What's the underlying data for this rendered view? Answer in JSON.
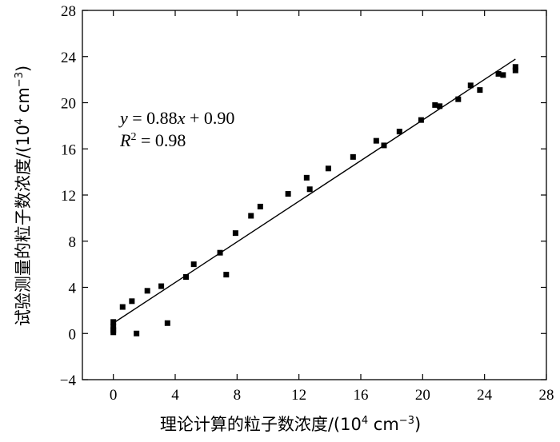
{
  "chart_data": {
    "type": "scatter",
    "xlim": [
      -2,
      28
    ],
    "ylim": [
      -4,
      28
    ],
    "x_ticks": [
      0,
      4,
      8,
      12,
      16,
      20,
      24,
      28
    ],
    "y_ticks": [
      -4,
      0,
      4,
      8,
      12,
      16,
      20,
      24,
      28
    ],
    "xlabel": {
      "main": "理论计算的粒子数浓度/(10",
      "sup1": "4",
      "mid": " cm",
      "sup2": "−3",
      "end": ")"
    },
    "ylabel": {
      "main": "试验测量的粒子数浓度/(10",
      "sup1": "4",
      "mid": " cm",
      "sup2": "−3",
      "end": ")"
    },
    "annotation": {
      "line1": {
        "var": "y",
        "rest1": " = 0.88",
        "var2": "x",
        "rest2": " + 0.90"
      },
      "line2": {
        "var": "R",
        "sup": "2",
        "rest": " = 0.98"
      }
    },
    "fit_line": {
      "slope": 0.88,
      "intercept": 0.9,
      "x_range": [
        0,
        26
      ]
    },
    "grid": false,
    "points": [
      {
        "x": 0,
        "y": 1.0
      },
      {
        "x": 0,
        "y": 0.6
      },
      {
        "x": 0,
        "y": 0.3
      },
      {
        "x": 0,
        "y": 0.1
      },
      {
        "x": 0.6,
        "y": 2.3
      },
      {
        "x": 1.2,
        "y": 2.8
      },
      {
        "x": 1.5,
        "y": 0.0
      },
      {
        "x": 2.2,
        "y": 3.7
      },
      {
        "x": 3.1,
        "y": 4.1
      },
      {
        "x": 3.5,
        "y": 0.9
      },
      {
        "x": 4.7,
        "y": 4.9
      },
      {
        "x": 5.2,
        "y": 6.0
      },
      {
        "x": 6.9,
        "y": 7.0
      },
      {
        "x": 7.3,
        "y": 5.1
      },
      {
        "x": 7.9,
        "y": 8.7
      },
      {
        "x": 8.9,
        "y": 10.2
      },
      {
        "x": 9.5,
        "y": 11.0
      },
      {
        "x": 11.3,
        "y": 12.1
      },
      {
        "x": 12.5,
        "y": 13.5
      },
      {
        "x": 12.7,
        "y": 12.5
      },
      {
        "x": 13.9,
        "y": 14.3
      },
      {
        "x": 15.5,
        "y": 15.3
      },
      {
        "x": 17.0,
        "y": 16.7
      },
      {
        "x": 17.5,
        "y": 16.3
      },
      {
        "x": 18.5,
        "y": 17.5
      },
      {
        "x": 19.9,
        "y": 18.5
      },
      {
        "x": 20.8,
        "y": 19.8
      },
      {
        "x": 21.1,
        "y": 19.7
      },
      {
        "x": 22.3,
        "y": 20.3
      },
      {
        "x": 23.1,
        "y": 21.5
      },
      {
        "x": 23.7,
        "y": 21.1
      },
      {
        "x": 24.9,
        "y": 22.5
      },
      {
        "x": 25.2,
        "y": 22.4
      },
      {
        "x": 26.0,
        "y": 23.1
      },
      {
        "x": 26.0,
        "y": 22.8
      }
    ]
  }
}
